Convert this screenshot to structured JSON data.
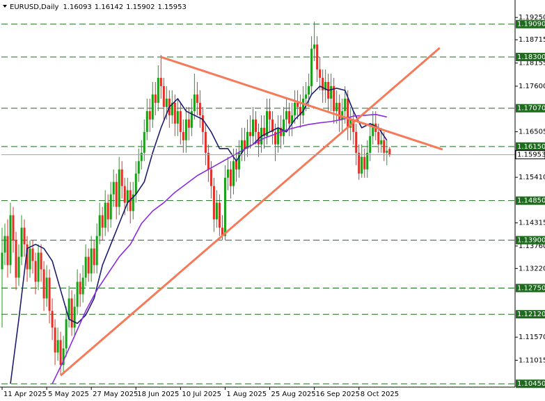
{
  "chart_data": {
    "type": "candlestick",
    "symbol": "EURUSD,Daily",
    "up_color": "#19a019",
    "down_color": "#e0302a",
    "xlim": [
      -0.25,
      184
    ],
    "ylim": [
      1.1037,
      1.1967
    ],
    "categories": [
      "11 Apr 2025",
      null,
      null,
      null,
      null,
      null,
      null,
      null,
      null,
      null,
      null,
      null,
      null,
      null,
      null,
      null,
      "5 May 2025",
      null,
      null,
      null,
      null,
      null,
      null,
      null,
      null,
      null,
      null,
      null,
      null,
      null,
      null,
      null,
      "27 May 2025",
      null,
      null,
      null,
      null,
      null,
      null,
      null,
      null,
      null,
      null,
      null,
      null,
      null,
      null,
      null,
      "18 Jun 2025",
      null,
      null,
      null,
      null,
      null,
      null,
      null,
      null,
      null,
      null,
      null,
      null,
      null,
      null,
      null,
      "10 Jul 2025",
      null,
      null,
      null,
      null,
      null,
      null,
      null,
      null,
      null,
      null,
      null,
      null,
      null,
      null,
      null,
      "1 Aug 2025",
      null,
      null,
      null,
      null,
      null,
      null,
      null,
      null,
      null,
      null,
      null,
      null,
      null,
      null,
      null,
      "25 Aug 2025",
      null,
      null,
      null,
      null,
      null,
      null,
      null,
      null,
      null,
      null,
      null,
      null,
      null,
      null,
      null,
      "16 Sep 2025",
      null,
      null,
      null,
      null,
      null,
      null,
      null,
      null,
      null,
      null,
      null,
      null,
      null,
      null,
      null,
      "8 Oct 2025",
      null,
      null,
      null,
      null,
      null,
      null,
      null,
      null,
      null,
      null,
      null
    ],
    "open": [
      1.132,
      1.136,
      1.14,
      1.133,
      1.145,
      1.139,
      1.13,
      1.135,
      1.142,
      1.138,
      1.132,
      1.137,
      1.134,
      1.129,
      1.136,
      1.132,
      1.125,
      1.13,
      1.122,
      1.118,
      1.112,
      1.115,
      1.109,
      1.113,
      1.12,
      1.125,
      1.118,
      1.123,
      1.129,
      1.126,
      1.13,
      1.135,
      1.131,
      1.137,
      1.133,
      1.14,
      1.145,
      1.142,
      1.148,
      1.144,
      1.15,
      1.153,
      1.147,
      1.156,
      1.152,
      1.148,
      1.151,
      1.146,
      1.15,
      1.155,
      1.158,
      1.16,
      1.165,
      1.17,
      1.168,
      1.174,
      1.172,
      1.178,
      1.176,
      1.171,
      1.173,
      1.169,
      1.172,
      1.167,
      1.17,
      1.165,
      1.163,
      1.168,
      1.166,
      1.17,
      1.174,
      1.172,
      1.169,
      1.165,
      1.16,
      1.156,
      1.152,
      1.144,
      1.148,
      1.142,
      1.14,
      1.154,
      1.156,
      1.152,
      1.158,
      1.156,
      1.16,
      1.163,
      1.161,
      1.165,
      1.164,
      1.168,
      1.165,
      1.162,
      1.166,
      1.164,
      1.17,
      1.168,
      1.165,
      1.162,
      1.166,
      1.164,
      1.168,
      1.17,
      1.167,
      1.169,
      1.172,
      1.171,
      1.169,
      1.173,
      1.174,
      1.176,
      1.185,
      1.186,
      1.18,
      1.178,
      1.175,
      1.177,
      1.173,
      1.176,
      1.17,
      1.172,
      1.168,
      1.17,
      1.173,
      1.166,
      1.168,
      1.165,
      1.16,
      1.155,
      1.159,
      1.156,
      1.16,
      1.164,
      1.167,
      1.165,
      1.162,
      1.163,
      1.16,
      1.16093
    ],
    "high": [
      1.142,
      1.143,
      1.144,
      1.148,
      1.147,
      1.141,
      1.138,
      1.145,
      1.144,
      1.14,
      1.139,
      1.139,
      1.136,
      1.138,
      1.138,
      1.134,
      1.133,
      1.132,
      1.125,
      1.12,
      1.118,
      1.117,
      1.116,
      1.123,
      1.128,
      1.127,
      1.126,
      1.132,
      1.131,
      1.133,
      1.138,
      1.137,
      1.14,
      1.139,
      1.143,
      1.148,
      1.147,
      1.151,
      1.15,
      1.153,
      1.156,
      1.155,
      1.159,
      1.158,
      1.154,
      1.154,
      1.153,
      1.153,
      1.158,
      1.161,
      1.163,
      1.168,
      1.173,
      1.173,
      1.177,
      1.177,
      1.181,
      1.1835,
      1.178,
      1.176,
      1.175,
      1.175,
      1.174,
      1.173,
      1.172,
      1.168,
      1.171,
      1.171,
      1.173,
      1.179,
      1.177,
      1.175,
      1.171,
      1.167,
      1.162,
      1.158,
      1.154,
      1.151,
      1.15,
      1.145,
      1.157,
      1.159,
      1.158,
      1.161,
      1.161,
      1.163,
      1.166,
      1.166,
      1.168,
      1.169,
      1.171,
      1.17,
      1.167,
      1.169,
      1.169,
      1.173,
      1.173,
      1.17,
      1.167,
      1.169,
      1.169,
      1.171,
      1.173,
      1.172,
      1.172,
      1.175,
      1.175,
      1.174,
      1.176,
      1.177,
      1.179,
      1.188,
      1.1915,
      1.188,
      1.183,
      1.18,
      1.18,
      1.179,
      1.179,
      1.178,
      1.175,
      1.174,
      1.173,
      1.176,
      1.175,
      1.171,
      1.17,
      1.167,
      1.162,
      1.162,
      1.161,
      1.163,
      1.167,
      1.17,
      1.17,
      1.167,
      1.166,
      1.165,
      1.163,
      1.16142
    ],
    "low": [
      1.118,
      1.133,
      1.13,
      1.131,
      1.136,
      1.127,
      1.128,
      1.133,
      1.135,
      1.129,
      1.13,
      1.131,
      1.126,
      1.127,
      1.129,
      1.122,
      1.123,
      1.119,
      1.115,
      1.109,
      1.11,
      1.1065,
      1.107,
      1.111,
      1.118,
      1.116,
      1.116,
      1.121,
      1.123,
      1.124,
      1.128,
      1.129,
      1.129,
      1.131,
      1.131,
      1.138,
      1.139,
      1.14,
      1.141,
      1.142,
      1.147,
      1.144,
      1.145,
      1.149,
      1.145,
      1.146,
      1.143,
      1.144,
      1.148,
      1.153,
      1.156,
      1.158,
      1.163,
      1.165,
      1.166,
      1.169,
      1.17,
      1.173,
      1.168,
      1.168,
      1.166,
      1.167,
      1.164,
      1.164,
      1.162,
      1.16,
      1.16,
      1.163,
      1.164,
      1.168,
      1.169,
      1.166,
      1.162,
      1.157,
      1.153,
      1.149,
      1.141,
      1.142,
      1.14,
      1.139,
      1.139,
      1.151,
      1.149,
      1.15,
      1.153,
      1.154,
      1.158,
      1.158,
      1.159,
      1.161,
      1.162,
      1.162,
      1.159,
      1.16,
      1.161,
      1.162,
      1.165,
      1.162,
      1.158,
      1.16,
      1.161,
      1.162,
      1.165,
      1.164,
      1.164,
      1.167,
      1.168,
      1.166,
      1.167,
      1.17,
      1.171,
      1.174,
      1.182,
      1.177,
      1.175,
      1.172,
      1.172,
      1.17,
      1.17,
      1.167,
      1.167,
      1.165,
      1.165,
      1.167,
      1.163,
      1.163,
      1.162,
      1.157,
      1.1535,
      1.154,
      1.154,
      1.154,
      1.158,
      1.162,
      1.163,
      1.16,
      1.16,
      1.158,
      1.157,
      1.15902
    ],
    "close": [
      1.136,
      1.14,
      1.133,
      1.145,
      1.139,
      1.13,
      1.135,
      1.142,
      1.138,
      1.132,
      1.137,
      1.134,
      1.129,
      1.136,
      1.132,
      1.125,
      1.13,
      1.122,
      1.118,
      1.112,
      1.115,
      1.109,
      1.113,
      1.12,
      1.125,
      1.118,
      1.123,
      1.129,
      1.126,
      1.13,
      1.135,
      1.131,
      1.137,
      1.133,
      1.14,
      1.145,
      1.142,
      1.148,
      1.144,
      1.15,
      1.153,
      1.147,
      1.156,
      1.152,
      1.148,
      1.151,
      1.146,
      1.15,
      1.155,
      1.158,
      1.16,
      1.165,
      1.17,
      1.168,
      1.174,
      1.172,
      1.178,
      1.176,
      1.171,
      1.173,
      1.169,
      1.172,
      1.167,
      1.17,
      1.165,
      1.163,
      1.168,
      1.166,
      1.17,
      1.174,
      1.172,
      1.169,
      1.165,
      1.16,
      1.156,
      1.152,
      1.144,
      1.148,
      1.142,
      1.14,
      1.154,
      1.156,
      1.152,
      1.158,
      1.156,
      1.16,
      1.163,
      1.161,
      1.165,
      1.164,
      1.168,
      1.165,
      1.162,
      1.166,
      1.164,
      1.17,
      1.168,
      1.165,
      1.162,
      1.166,
      1.164,
      1.168,
      1.17,
      1.167,
      1.169,
      1.172,
      1.171,
      1.169,
      1.173,
      1.174,
      1.176,
      1.185,
      1.186,
      1.18,
      1.178,
      1.175,
      1.177,
      1.173,
      1.176,
      1.17,
      1.172,
      1.168,
      1.17,
      1.173,
      1.166,
      1.168,
      1.165,
      1.16,
      1.155,
      1.159,
      1.156,
      1.16,
      1.164,
      1.167,
      1.165,
      1.162,
      1.163,
      1.16,
      1.1605,
      1.15953
    ],
    "ma_lines": [
      {
        "color": "#1c1c6e",
        "x": [
          3,
          6,
          9,
          12,
          15,
          18,
          21,
          24,
          27,
          30,
          33,
          36,
          39,
          42,
          45,
          48,
          51,
          54,
          57,
          60,
          63,
          66,
          69,
          72,
          75,
          78,
          81,
          84,
          87,
          90,
          93,
          96,
          99,
          102,
          105,
          108,
          111,
          114,
          117,
          120,
          123,
          126,
          129,
          132,
          135,
          138
        ],
        "values": [
          1.1045,
          1.12,
          1.137,
          1.138,
          1.137,
          1.134,
          1.127,
          1.12,
          1.119,
          1.121,
          1.125,
          1.133,
          1.138,
          1.143,
          1.148,
          1.15,
          1.153,
          1.16,
          1.166,
          1.171,
          1.173,
          1.17,
          1.169,
          1.168,
          1.165,
          1.161,
          1.161,
          1.158,
          1.161,
          1.162,
          1.164,
          1.165,
          1.166,
          1.165,
          1.168,
          1.17,
          1.174,
          1.176,
          1.175,
          1.1755,
          1.175,
          1.17,
          1.166,
          1.167,
          1.166,
          1.163
        ]
      },
      {
        "color": "#8a2be2",
        "x": [
          18,
          22,
          26,
          30,
          34,
          38,
          42,
          46,
          50,
          54,
          58,
          62,
          66,
          70,
          74,
          78,
          82,
          86,
          90,
          94,
          98,
          102,
          106,
          110,
          114,
          118,
          122,
          126,
          130,
          134,
          138
        ],
        "values": [
          1.1045,
          1.11,
          1.116,
          1.122,
          1.127,
          1.131,
          1.135,
          1.138,
          1.143,
          1.146,
          1.148,
          1.1505,
          1.1525,
          1.1545,
          1.156,
          1.1575,
          1.159,
          1.1605,
          1.162,
          1.1635,
          1.1645,
          1.1655,
          1.1662,
          1.1668,
          1.1672,
          1.1675,
          1.168,
          1.1688,
          1.169,
          1.1692,
          1.1686
        ]
      }
    ],
    "trendlines": [
      {
        "color": "#f47a5a",
        "x": [
          57,
          158
        ],
        "values": [
          1.183,
          1.1608
        ]
      },
      {
        "color": "#f47a5a",
        "x": [
          21,
          157
        ],
        "values": [
          1.1065,
          1.1852
        ]
      }
    ],
    "levels_color": "#1d6b1d",
    "levels": [
      {
        "value": 1.1909,
        "label": "1.19090"
      },
      {
        "value": 1.183,
        "label": "1.18300"
      },
      {
        "value": 1.1707,
        "label": "1.17070"
      },
      {
        "value": 1.1615,
        "label": "1.16150"
      },
      {
        "value": 1.1485,
        "label": "1.14850"
      },
      {
        "value": 1.139,
        "label": "1.13900"
      },
      {
        "value": 1.1275,
        "label": "1.12750"
      },
      {
        "value": 1.1212,
        "label": "1.12120"
      },
      {
        "value": 1.1045,
        "label": "1.10450"
      }
    ],
    "yticks": [
      {
        "value": 1.1925,
        "label": "1.19250"
      },
      {
        "value": 1.18715,
        "label": "1.18715"
      },
      {
        "value": 1.18155,
        "label": "1.18155"
      },
      {
        "value": 1.176,
        "label": "1.17600"
      },
      {
        "value": 1.16505,
        "label": "1.16505"
      },
      {
        "value": 1.1541,
        "label": "1.15410"
      },
      {
        "value": 1.14315,
        "label": "1.14315"
      },
      {
        "value": 1.1376,
        "label": "1.13760"
      },
      {
        "value": 1.1322,
        "label": "1.13220"
      },
      {
        "value": 1.1157,
        "label": "1.11570"
      },
      {
        "value": 1.11015,
        "label": "1.11015"
      }
    ]
  }
}
